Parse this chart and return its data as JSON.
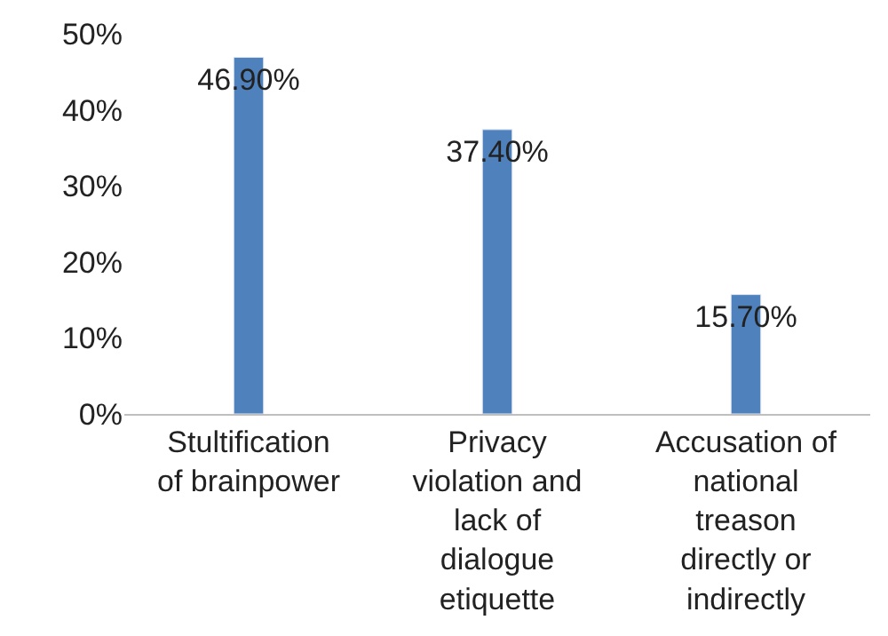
{
  "chart_data": {
    "type": "bar",
    "categories": [
      "Stultification of brainpower",
      "Privacy violation and lack of dialogue etiquette",
      "Accusation of national treason directly or indirectly"
    ],
    "values": [
      46.9,
      37.4,
      15.7
    ],
    "value_labels": [
      "46.90%",
      "37.40%",
      "15.70%"
    ],
    "color": "#4f81bd",
    "ylim": [
      0,
      50
    ],
    "yticks": [
      {
        "value": 0,
        "label": "0%"
      },
      {
        "value": 10,
        "label": "10%"
      },
      {
        "value": 20,
        "label": "20%"
      },
      {
        "value": 30,
        "label": "30%"
      },
      {
        "value": 40,
        "label": "40%"
      },
      {
        "value": 50,
        "label": "50%"
      }
    ],
    "legend": false
  }
}
